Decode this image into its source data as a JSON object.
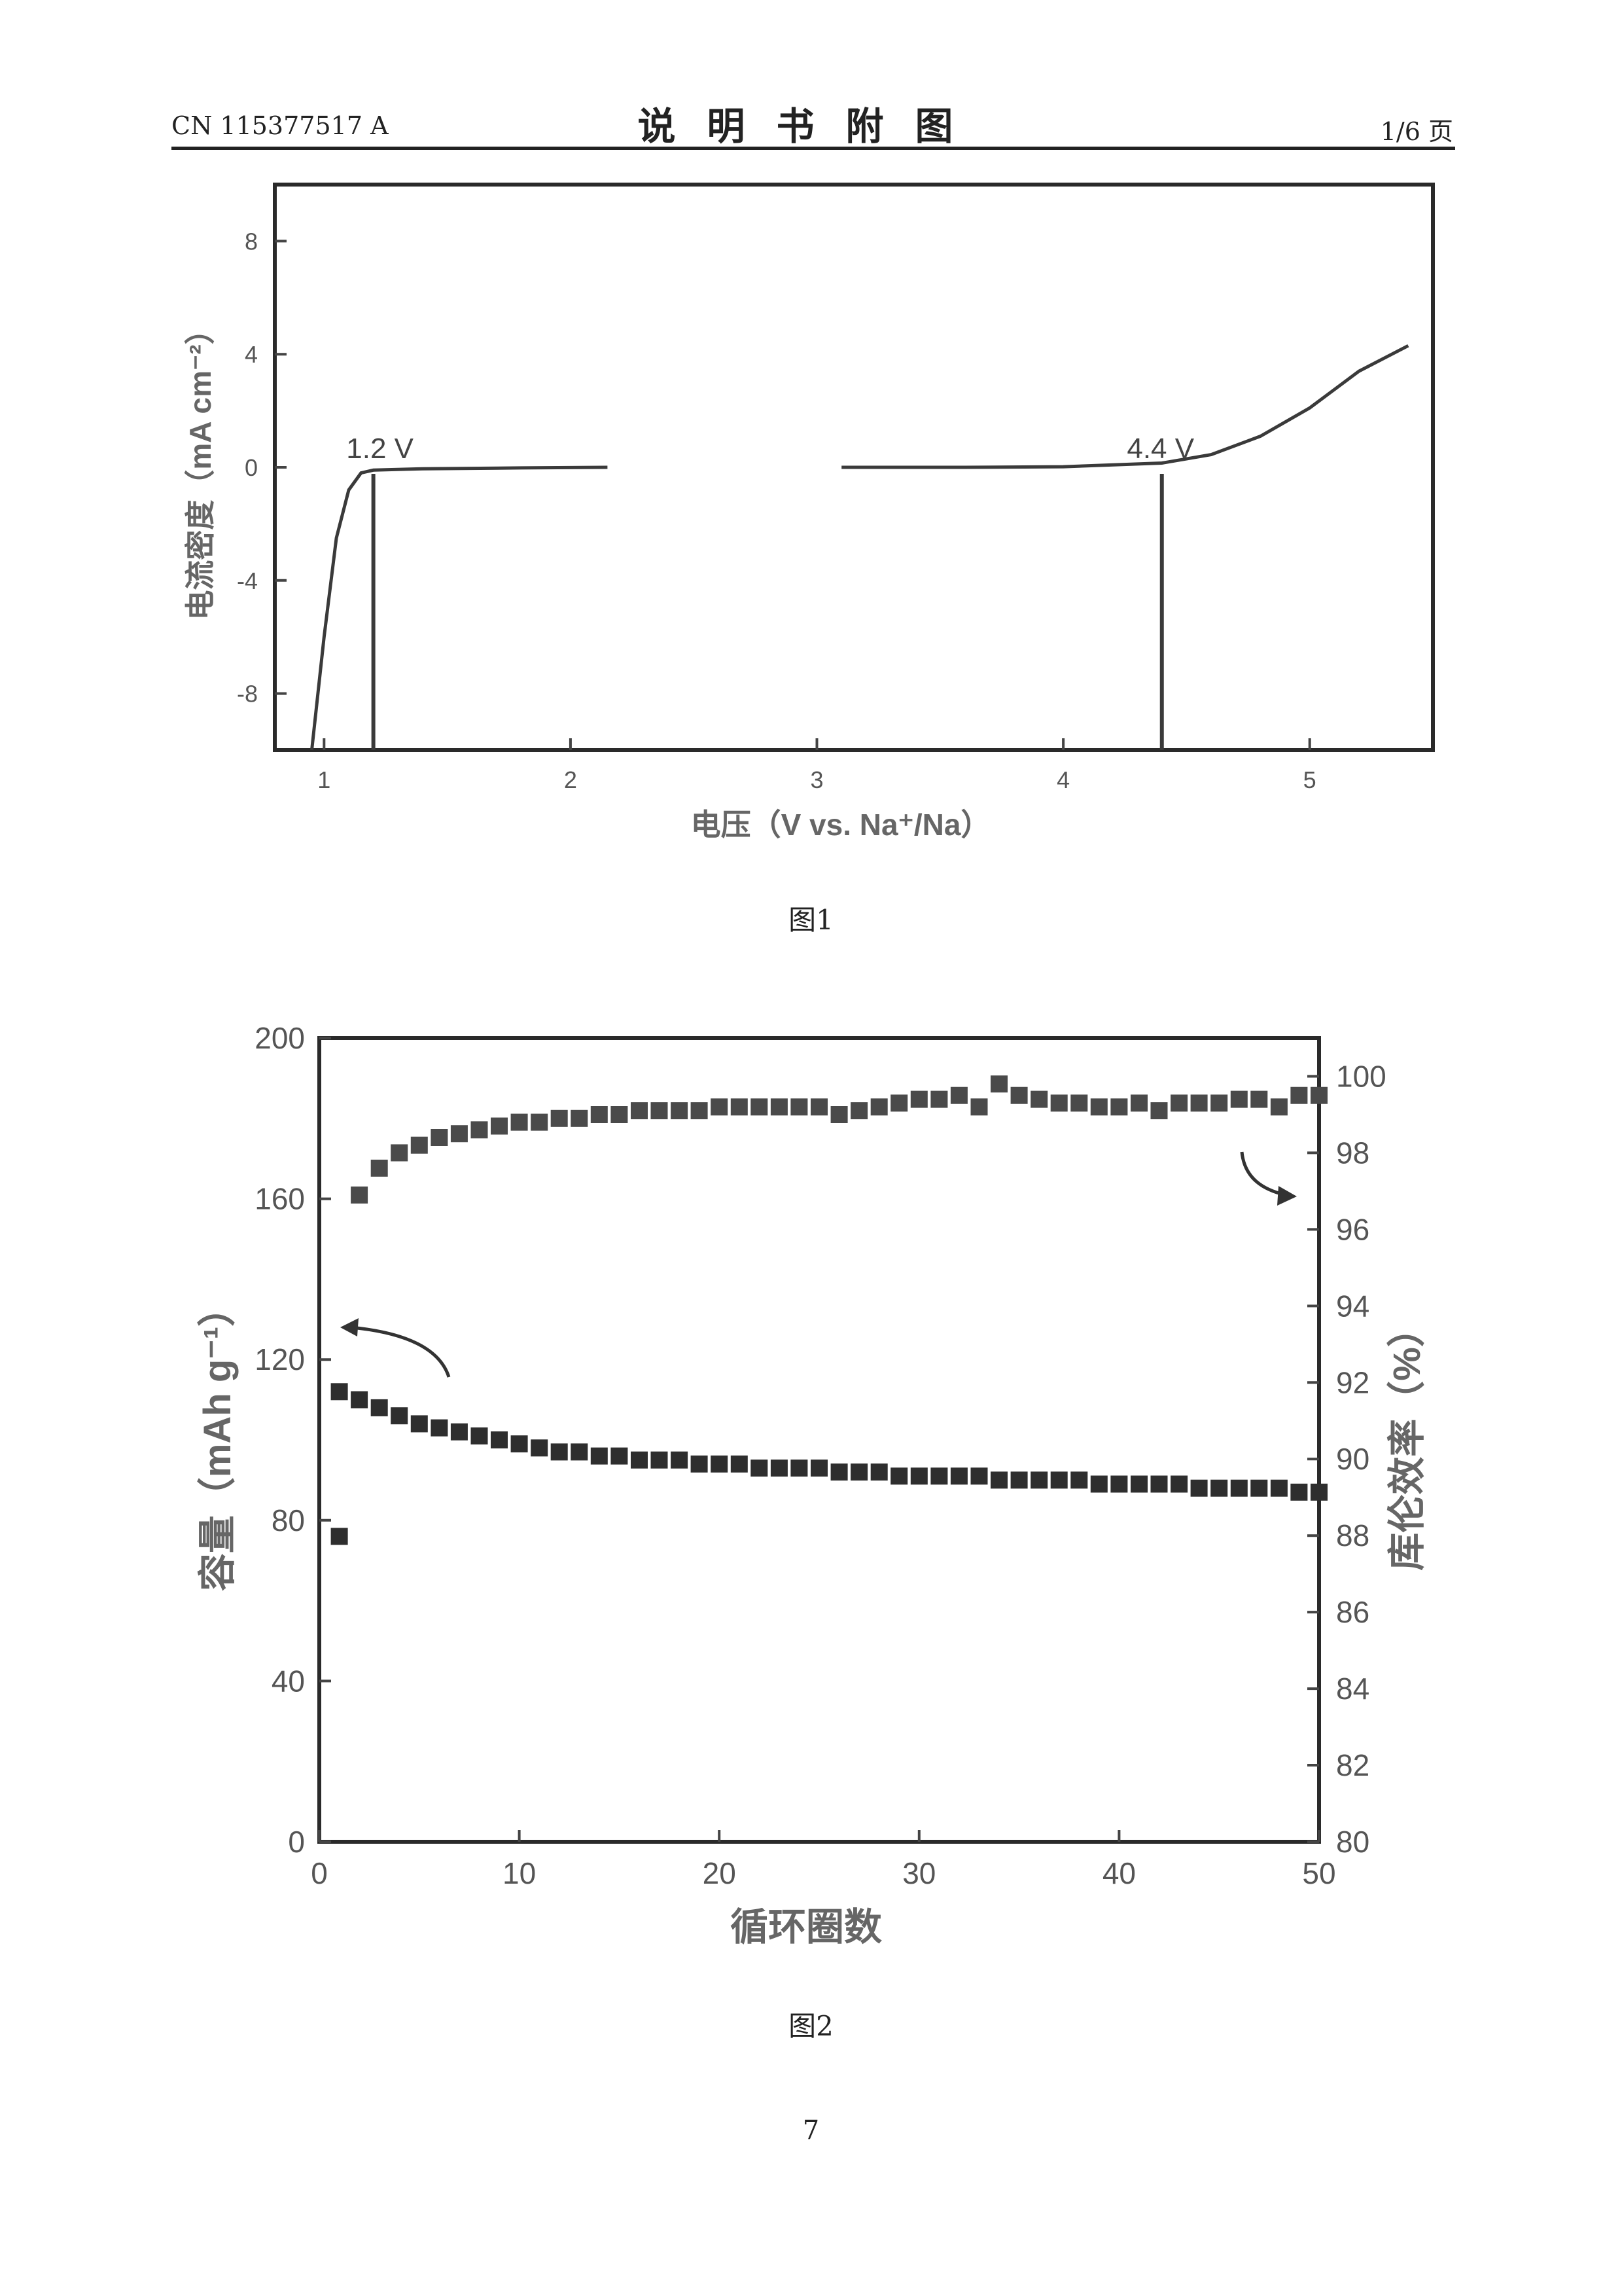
{
  "header": {
    "left": "CN 115377517 A",
    "center": "说明书附图",
    "right": "1/6 页"
  },
  "figure1": {
    "caption": "图1",
    "chart_data": {
      "type": "line",
      "xlabel": "电压（V vs. Na⁺/Na）",
      "ylabel": "电流密度（mA cm⁻²）",
      "xlim": [
        0.8,
        5.5
      ],
      "ylim": [
        -10,
        10
      ],
      "xticks": [
        1,
        2,
        3,
        4,
        5
      ],
      "yticks": [
        -8,
        -4,
        0,
        4,
        8
      ],
      "segments": [
        {
          "x": [
            0.95,
            1.0,
            1.05,
            1.1,
            1.15,
            1.2,
            1.4,
            1.8,
            2.15
          ],
          "y": [
            -10,
            -6,
            -2.5,
            -0.8,
            -0.2,
            -0.1,
            -0.05,
            -0.02,
            0
          ]
        },
        {
          "x": [
            3.1,
            3.6,
            4.0,
            4.4,
            4.6,
            4.8,
            5.0,
            5.2,
            5.4
          ],
          "y": [
            0,
            0,
            0.02,
            0.15,
            0.45,
            1.1,
            2.1,
            3.4,
            4.3
          ]
        }
      ],
      "markers": [
        {
          "x": 1.2,
          "label": "1.2 V"
        },
        {
          "x": 4.4,
          "label": "4.4 V"
        }
      ],
      "grid": false
    }
  },
  "figure2": {
    "caption": "图2",
    "chart_data": {
      "type": "scatter",
      "xlabel": "循环圈数",
      "ylabel": "容量（mAh g⁻¹）",
      "y2label": "库伦效率（%）",
      "xlim": [
        0,
        50
      ],
      "ylim": [
        0,
        200
      ],
      "y2lim": [
        80,
        101
      ],
      "xticks": [
        0,
        10,
        20,
        30,
        40,
        50
      ],
      "yticks": [
        0,
        40,
        80,
        120,
        160,
        200
      ],
      "y2ticks": [
        80,
        82,
        84,
        86,
        88,
        90,
        92,
        94,
        96,
        98,
        100
      ],
      "series": [
        {
          "axis": "left",
          "x": [
            1,
            2,
            3,
            4,
            5,
            6,
            7,
            8,
            9,
            10,
            11,
            12,
            13,
            14,
            15,
            16,
            17,
            18,
            19,
            20,
            21,
            22,
            23,
            24,
            25,
            26,
            27,
            28,
            29,
            30,
            31,
            32,
            33,
            34,
            35,
            36,
            37,
            38,
            39,
            40,
            41,
            42,
            43,
            44,
            45,
            46,
            47,
            48,
            49,
            50
          ],
          "y": [
            112,
            110,
            108,
            106,
            104,
            103,
            102,
            101,
            100,
            99,
            98,
            97,
            97,
            96,
            96,
            95,
            95,
            95,
            94,
            94,
            94,
            93,
            93,
            93,
            93,
            92,
            92,
            92,
            91,
            91,
            91,
            91,
            91,
            90,
            90,
            90,
            90,
            90,
            89,
            89,
            89,
            89,
            89,
            88,
            88,
            88,
            88,
            88,
            87,
            87
          ]
        },
        {
          "axis": "left",
          "x": [
            1
          ],
          "y": [
            76
          ]
        },
        {
          "axis": "right",
          "x": [
            2,
            3,
            4,
            5,
            6,
            7,
            8,
            9,
            10,
            11,
            12,
            13,
            14,
            15,
            16,
            17,
            18,
            19,
            20,
            21,
            22,
            23,
            24,
            25,
            26,
            27,
            28,
            29,
            30,
            31,
            32,
            33,
            34,
            35,
            36,
            37,
            38,
            39,
            40,
            41,
            42,
            43,
            44,
            45,
            46,
            47,
            48,
            49,
            50
          ],
          "y": [
            96.9,
            97.6,
            98.0,
            98.2,
            98.4,
            98.5,
            98.6,
            98.7,
            98.8,
            98.8,
            98.9,
            98.9,
            99.0,
            99.0,
            99.1,
            99.1,
            99.1,
            99.1,
            99.2,
            99.2,
            99.2,
            99.2,
            99.2,
            99.2,
            99.0,
            99.1,
            99.2,
            99.3,
            99.4,
            99.4,
            99.5,
            99.2,
            99.8,
            99.5,
            99.4,
            99.3,
            99.3,
            99.2,
            99.2,
            99.3,
            99.1,
            99.3,
            99.3,
            99.3,
            99.4,
            99.4,
            99.2,
            99.5,
            99.5
          ]
        }
      ],
      "grid": false
    }
  },
  "page_number": "7"
}
